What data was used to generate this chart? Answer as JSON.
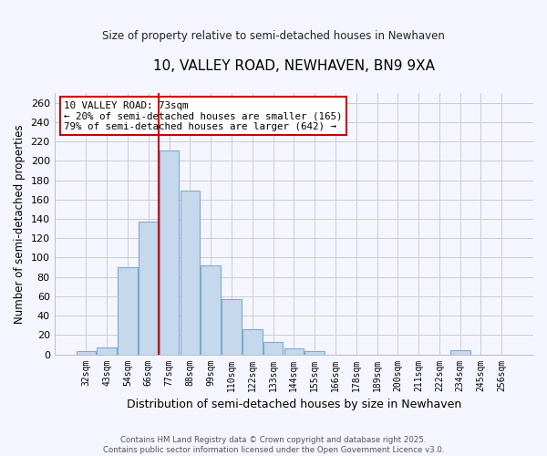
{
  "title": "10, VALLEY ROAD, NEWHAVEN, BN9 9XA",
  "subtitle": "Size of property relative to semi-detached houses in Newhaven",
  "xlabel": "Distribution of semi-detached houses by size in Newhaven",
  "ylabel": "Number of semi-detached properties",
  "bar_color": "#c6d9ec",
  "bar_edge_color": "#7aaad0",
  "grid_color": "#cccccc",
  "background_color": "#f5f5ff",
  "bin_labels": [
    "32sqm",
    "43sqm",
    "54sqm",
    "66sqm",
    "77sqm",
    "88sqm",
    "99sqm",
    "110sqm",
    "122sqm",
    "133sqm",
    "144sqm",
    "155sqm",
    "166sqm",
    "178sqm",
    "189sqm",
    "200sqm",
    "211sqm",
    "222sqm",
    "234sqm",
    "245sqm",
    "256sqm"
  ],
  "bar_heights": [
    3,
    7,
    90,
    137,
    211,
    169,
    92,
    57,
    26,
    13,
    6,
    3,
    0,
    0,
    0,
    0,
    0,
    0,
    4,
    0,
    0
  ],
  "ylim": [
    0,
    270
  ],
  "yticks": [
    0,
    20,
    40,
    60,
    80,
    100,
    120,
    140,
    160,
    180,
    200,
    220,
    240,
    260
  ],
  "property_line_bin_index": 4,
  "annotation_title": "10 VALLEY ROAD: 73sqm",
  "annotation_line1": "← 20% of semi-detached houses are smaller (165)",
  "annotation_line2": "79% of semi-detached houses are larger (642) →",
  "line_color": "#cc0000",
  "footer1": "Contains HM Land Registry data © Crown copyright and database right 2025.",
  "footer2": "Contains public sector information licensed under the Open Government Licence v3.0."
}
